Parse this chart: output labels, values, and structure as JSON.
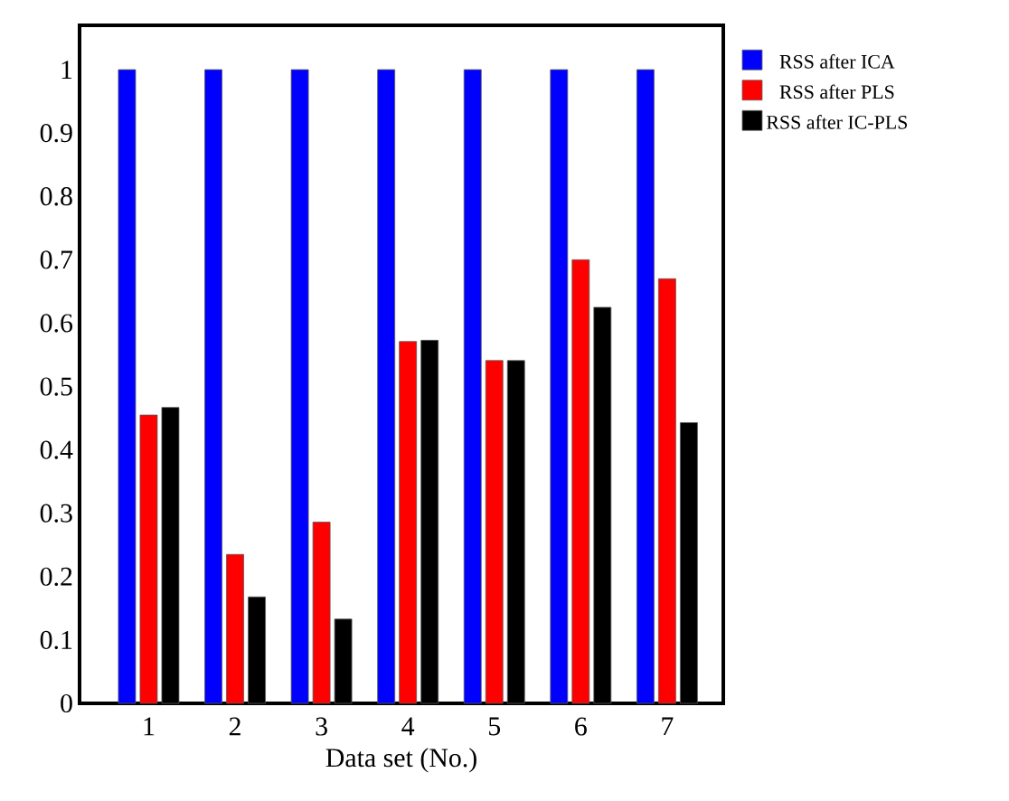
{
  "chart_data": {
    "type": "bar",
    "xlabel": "Data set (No.)",
    "categories": [
      "1",
      "2",
      "3",
      "4",
      "5",
      "6",
      "7"
    ],
    "series": [
      {
        "name": "RSS after ICA",
        "color": "#0000ff",
        "values": [
          1,
          1,
          1,
          1,
          1,
          1,
          1
        ]
      },
      {
        "name": "RSS after PLS",
        "color": "#ff0000",
        "values": [
          0.455,
          0.235,
          0.286,
          0.571,
          0.541,
          0.7,
          0.67
        ]
      },
      {
        "name": "RSS after IC-PLS",
        "color": "#000000",
        "values": [
          0.467,
          0.168,
          0.133,
          0.573,
          0.541,
          0.625,
          0.443
        ]
      }
    ],
    "ylim": [
      0,
      1.07
    ],
    "yticks": [
      0,
      0.1,
      0.2,
      0.3,
      0.4,
      0.5,
      0.6,
      0.7,
      0.8,
      0.9,
      1
    ],
    "legend": "right",
    "grid": false
  }
}
